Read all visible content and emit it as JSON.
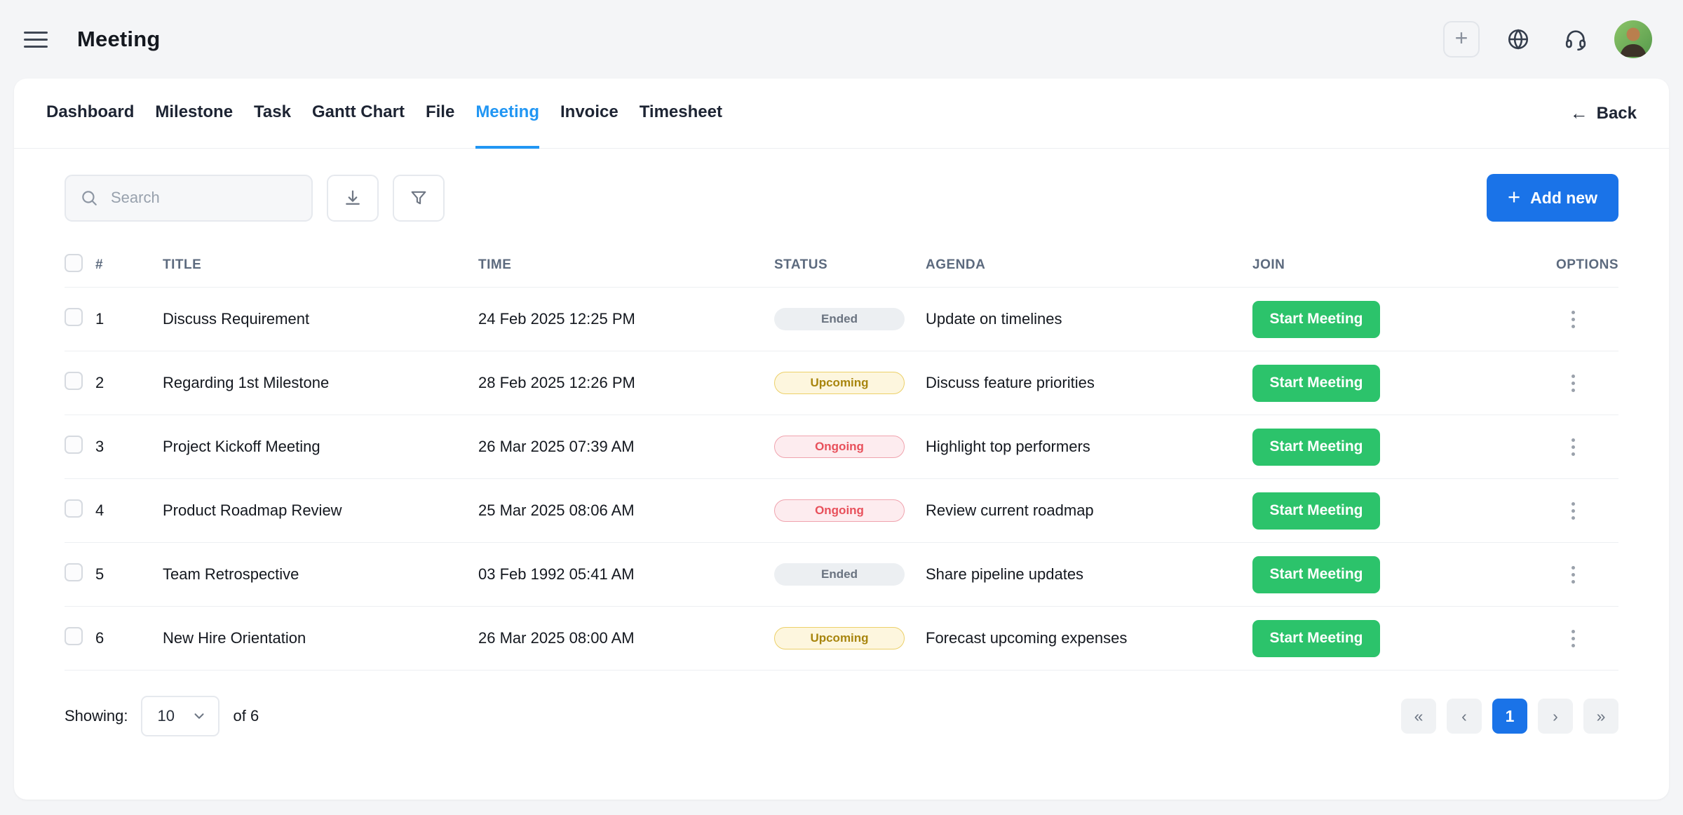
{
  "header": {
    "title": "Meeting"
  },
  "topbar": {
    "quick_add": "+"
  },
  "tabs": [
    {
      "label": "Dashboard",
      "active": false
    },
    {
      "label": "Milestone",
      "active": false
    },
    {
      "label": "Task",
      "active": false
    },
    {
      "label": "Gantt Chart",
      "active": false
    },
    {
      "label": "File",
      "active": false
    },
    {
      "label": "Meeting",
      "active": true
    },
    {
      "label": "Invoice",
      "active": false
    },
    {
      "label": "Timesheet",
      "active": false
    }
  ],
  "back": {
    "arrow": "←",
    "label": "Back"
  },
  "toolbar": {
    "search_placeholder": "Search",
    "plus": "+",
    "add_new_label": "Add new"
  },
  "table": {
    "columns": [
      "#",
      "TITLE",
      "TIME",
      "STATUS",
      "AGENDA",
      "JOIN",
      "OPTIONS"
    ],
    "rows": [
      {
        "num": "1",
        "title": "Discuss Requirement",
        "time": "24 Feb 2025 12:25 PM",
        "status": "Ended",
        "status_type": "ended",
        "agenda": "Update on timelines",
        "join_label": "Start Meeting"
      },
      {
        "num": "2",
        "title": "Regarding 1st Milestone",
        "time": "28 Feb 2025 12:26 PM",
        "status": "Upcoming",
        "status_type": "upcoming",
        "agenda": "Discuss feature priorities",
        "join_label": "Start Meeting"
      },
      {
        "num": "3",
        "title": "Project Kickoff Meeting",
        "time": "26 Mar 2025 07:39 AM",
        "status": "Ongoing",
        "status_type": "ongoing",
        "agenda": "Highlight top performers",
        "join_label": "Start Meeting"
      },
      {
        "num": "4",
        "title": "Product Roadmap Review",
        "time": "25 Mar 2025 08:06 AM",
        "status": "Ongoing",
        "status_type": "ongoing",
        "agenda": "Review current roadmap",
        "join_label": "Start Meeting"
      },
      {
        "num": "5",
        "title": "Team Retrospective",
        "time": "03 Feb 1992 05:41 AM",
        "status": "Ended",
        "status_type": "ended",
        "agenda": "Share pipeline updates",
        "join_label": "Start Meeting"
      },
      {
        "num": "6",
        "title": "New Hire Orientation",
        "time": "26 Mar 2025 08:00 AM",
        "status": "Upcoming",
        "status_type": "upcoming",
        "agenda": "Forecast upcoming expenses",
        "join_label": "Start Meeting"
      }
    ]
  },
  "footer": {
    "showing_label": "Showing:",
    "page_size": "10",
    "of_label": "of 6",
    "pagination": {
      "first": "«",
      "prev": "‹",
      "page": "1",
      "next": "›",
      "last": "»"
    }
  },
  "colors": {
    "accent_blue": "#1a73e8",
    "tab_blue": "#2196f3",
    "green": "#2cc36b",
    "ended_bg": "#eceff2",
    "upcoming_bg": "#fdf6de",
    "ongoing_bg": "#fdecef"
  }
}
